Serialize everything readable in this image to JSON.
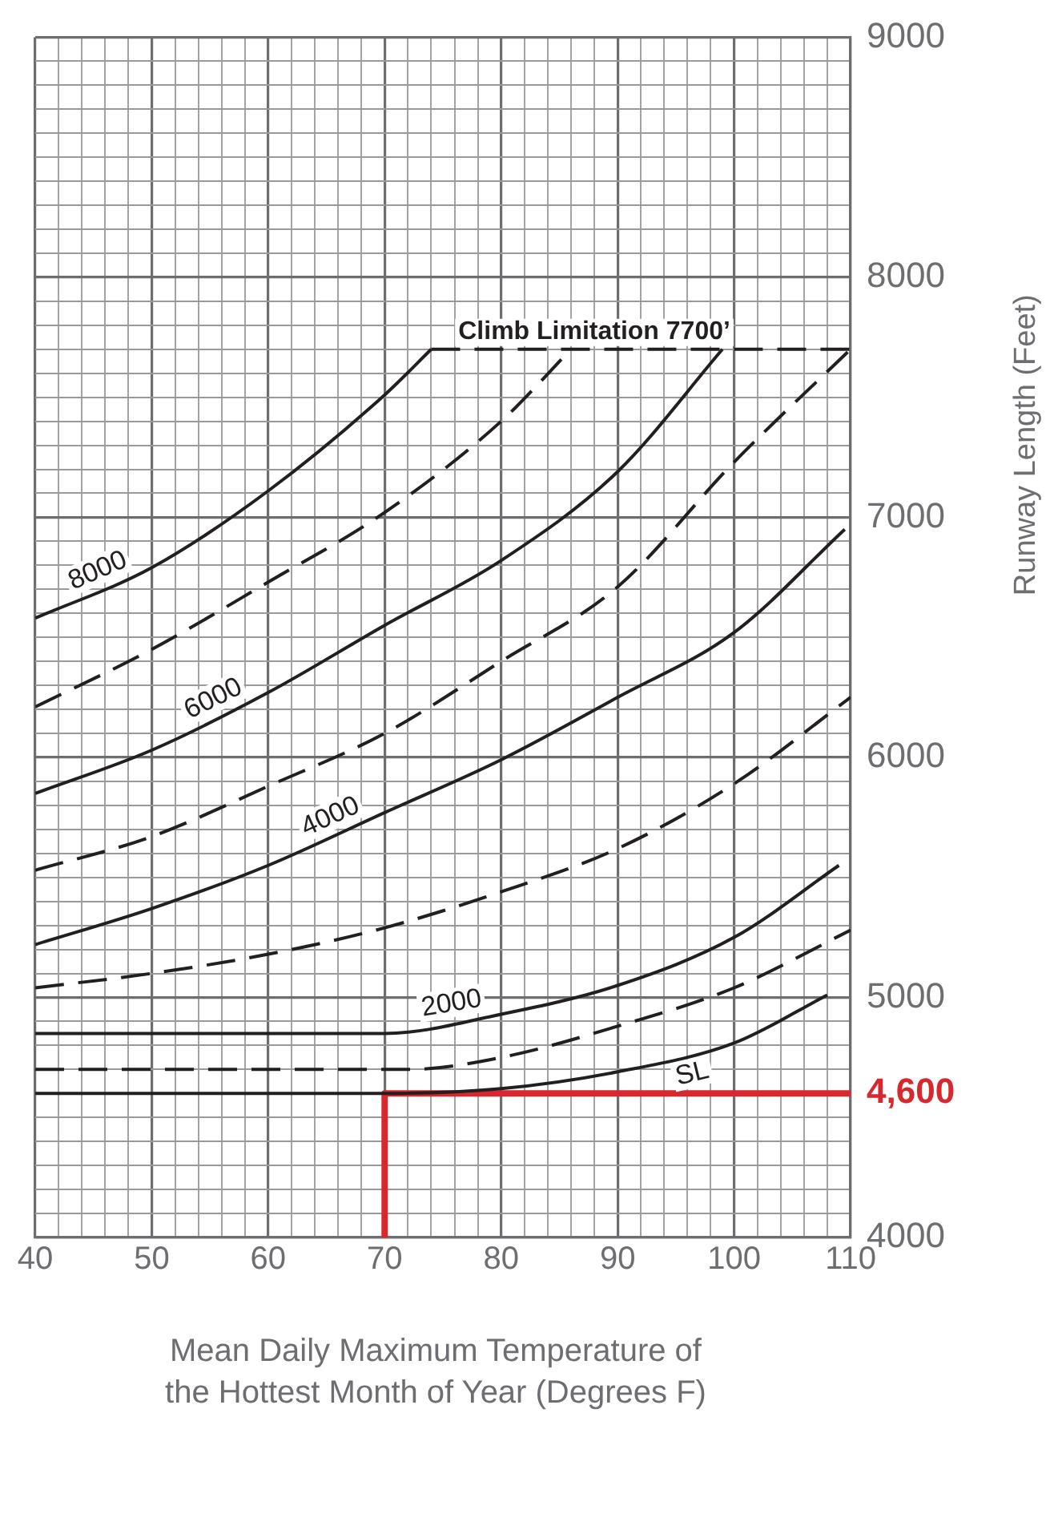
{
  "chart_data": {
    "type": "line",
    "xlabel": "Mean Daily Maximum Temperature of the Hottest Month of Year (Degrees F)",
    "ylabel": "Runway Length (Feet)",
    "xlim": [
      40,
      110
    ],
    "ylim": [
      4000,
      9000
    ],
    "grid": true,
    "legend": false,
    "marker": "none",
    "xticks": [
      40,
      {
        "value": 42,
        "label": null
      },
      {
        "value": 44,
        "label": null
      },
      {
        "value": 46,
        "label": null
      },
      {
        "value": 48,
        "label": null
      },
      50,
      {
        "value": 52,
        "label": null
      },
      {
        "value": 54,
        "label": null
      },
      {
        "value": 56,
        "label": null
      },
      {
        "value": 58,
        "label": null
      },
      60,
      {
        "value": 62,
        "label": null
      },
      {
        "value": 64,
        "label": null
      },
      {
        "value": 66,
        "label": null
      },
      {
        "value": 68,
        "label": null
      },
      70,
      {
        "value": 72,
        "label": null
      },
      {
        "value": 74,
        "label": null
      },
      {
        "value": 76,
        "label": null
      },
      {
        "value": 78,
        "label": null
      },
      80,
      {
        "value": 82,
        "label": null
      },
      {
        "value": 84,
        "label": null
      },
      {
        "value": 86,
        "label": null
      },
      {
        "value": 88,
        "label": null
      },
      90,
      {
        "value": 92,
        "label": null
      },
      {
        "value": 94,
        "label": null
      },
      {
        "value": 96,
        "label": null
      },
      {
        "value": 98,
        "label": null
      },
      100,
      {
        "value": 102,
        "label": null
      },
      {
        "value": 104,
        "label": null
      },
      {
        "value": 106,
        "label": null
      },
      {
        "value": 108,
        "label": null
      },
      110
    ],
    "yticks": [
      4000,
      {
        "value": 4100,
        "label": null
      },
      {
        "value": 4200,
        "label": null
      },
      {
        "value": 4300,
        "label": null
      },
      {
        "value": 4400,
        "label": null
      },
      {
        "value": 4500,
        "label": null
      },
      {
        "value": 4700,
        "label": null
      },
      {
        "value": 4800,
        "label": null
      },
      {
        "value": 4900,
        "label": null
      },
      5000,
      {
        "value": 5100,
        "label": null
      },
      {
        "value": 5200,
        "label": null
      },
      {
        "value": 5300,
        "label": null
      },
      {
        "value": 5400,
        "label": null
      },
      {
        "value": 5500,
        "label": null
      },
      {
        "value": 5600,
        "label": null
      },
      {
        "value": 5700,
        "label": null
      },
      {
        "value": 5800,
        "label": null
      },
      {
        "value": 5900,
        "label": null
      },
      6000,
      {
        "value": 6100,
        "label": null
      },
      {
        "value": 6200,
        "label": null
      },
      {
        "value": 6300,
        "label": null
      },
      {
        "value": 6400,
        "label": null
      },
      {
        "value": 6500,
        "label": null
      },
      {
        "value": 6600,
        "label": null
      },
      {
        "value": 6700,
        "label": null
      },
      {
        "value": 6800,
        "label": null
      },
      {
        "value": 6900,
        "label": null
      },
      7000,
      {
        "value": 7100,
        "label": null
      },
      {
        "value": 7200,
        "label": null
      },
      {
        "value": 7300,
        "label": null
      },
      {
        "value": 7400,
        "label": null
      },
      {
        "value": 7500,
        "label": null
      },
      {
        "value": 7600,
        "label": null
      },
      {
        "value": 7700,
        "label": null
      },
      {
        "value": 7800,
        "label": null
      },
      {
        "value": 7900,
        "label": null
      },
      8000,
      {
        "value": 8100,
        "label": null
      },
      {
        "value": 8200,
        "label": null
      },
      {
        "value": 8300,
        "label": null
      },
      {
        "value": 8400,
        "label": null
      },
      {
        "value": 8500,
        "label": null
      },
      {
        "value": 8600,
        "label": null
      },
      {
        "value": 8700,
        "label": null
      },
      {
        "value": 8800,
        "label": null
      },
      {
        "value": 8900,
        "label": null
      },
      9000
    ],
    "series": [
      {
        "name": "SL",
        "color": "#231f20",
        "line_style": "solid",
        "x": [
          40,
          70,
          80,
          90,
          100,
          108
        ],
        "values": [
          4600,
          4600,
          4620,
          4690,
          4810,
          5010
        ]
      },
      {
        "color": "#231f20",
        "line_style": "dashed",
        "x": [
          40,
          72,
          80,
          90,
          100,
          110
        ],
        "values": [
          4700,
          4700,
          4750,
          4880,
          5040,
          5280
        ]
      },
      {
        "name": "2000",
        "color": "#231f20",
        "line_style": "solid",
        "x": [
          40,
          70,
          80,
          90,
          100,
          109
        ],
        "values": [
          4850,
          4850,
          4930,
          5050,
          5250,
          5550
        ]
      },
      {
        "color": "#231f20",
        "line_style": "dashed",
        "x": [
          40,
          50,
          60,
          70,
          80,
          90,
          100,
          110
        ],
        "values": [
          5040,
          5100,
          5180,
          5290,
          5440,
          5620,
          5890,
          6250
        ]
      },
      {
        "name": "4000",
        "color": "#231f20",
        "line_style": "solid",
        "x": [
          40,
          50,
          60,
          70,
          80,
          90,
          100,
          109.5
        ],
        "values": [
          5220,
          5370,
          5550,
          5770,
          5990,
          6250,
          6520,
          6950
        ]
      },
      {
        "color": "#231f20",
        "line_style": "dashed",
        "x": [
          40,
          50,
          60,
          70,
          80,
          90,
          100,
          110
        ],
        "values": [
          5530,
          5670,
          5880,
          6100,
          6400,
          6710,
          7230,
          7700
        ]
      },
      {
        "name": "6000",
        "color": "#231f20",
        "line_style": "solid",
        "x": [
          40,
          50,
          60,
          70,
          80,
          90,
          99
        ],
        "values": [
          5850,
          6030,
          6270,
          6550,
          6820,
          7190,
          7700
        ]
      },
      {
        "color": "#231f20",
        "line_style": "dashed",
        "x": [
          40,
          50,
          60,
          70,
          80,
          86
        ],
        "values": [
          6210,
          6450,
          6730,
          7020,
          7400,
          7700
        ]
      },
      {
        "name": "8000",
        "color": "#231f20",
        "line_style": "solid",
        "x": [
          40,
          50,
          60,
          70,
          74
        ],
        "values": [
          6580,
          6790,
          7110,
          7510,
          7700
        ]
      },
      {
        "color": "#231f20",
        "line_style": "dashed",
        "x": [
          74,
          110
        ],
        "values": [
          7700,
          7700
        ]
      },
      {
        "color": "#d7282f",
        "line_style": "solid",
        "x": [
          70,
          70,
          110
        ],
        "values": [
          4000,
          4600,
          4600
        ]
      }
    ],
    "annotations": [
      {
        "text": "Climb Limitation 7700’",
        "x": 88,
        "y": 7700
      },
      {
        "text": "4,600",
        "x": 110,
        "y": 4600
      }
    ]
  }
}
